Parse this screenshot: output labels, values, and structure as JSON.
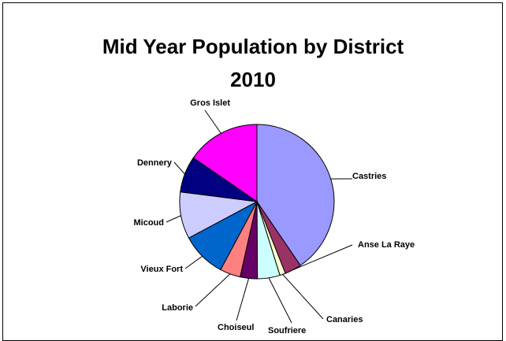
{
  "chart_data": {
    "type": "pie",
    "title_line1": "Mid Year Population by District",
    "title_line2": "2010",
    "slices": [
      {
        "label": "Castries",
        "value": 40.5,
        "color": "#9999ff"
      },
      {
        "label": "Anse La Raye",
        "value": 3.5,
        "color": "#993366"
      },
      {
        "label": "Canaries",
        "value": 1.2,
        "color": "#ffffcc"
      },
      {
        "label": "Soufriere",
        "value": 4.7,
        "color": "#ccffff"
      },
      {
        "label": "Choiseul",
        "value": 3.6,
        "color": "#660066"
      },
      {
        "label": "Laborie",
        "value": 4.3,
        "color": "#ff8080"
      },
      {
        "label": "Vieux Fort",
        "value": 9.4,
        "color": "#0066cc"
      },
      {
        "label": "Micoud",
        "value": 9.8,
        "color": "#ccccff"
      },
      {
        "label": "Dennery",
        "value": 7.6,
        "color": "#000080"
      },
      {
        "label": "Gros Islet",
        "value": 15.4,
        "color": "#ff00ff"
      }
    ]
  }
}
